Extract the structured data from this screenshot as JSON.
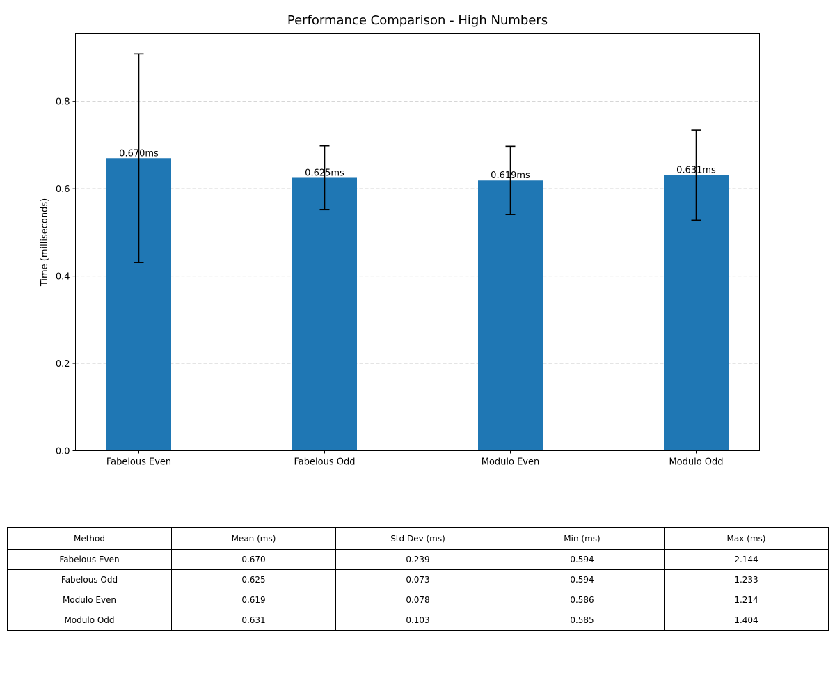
{
  "chart_data": {
    "type": "bar",
    "title": "Performance Comparison - High Numbers",
    "xlabel": "",
    "ylabel": "Time (milliseconds)",
    "categories": [
      "Fabelous Even",
      "Fabelous Odd",
      "Modulo Even",
      "Modulo Odd"
    ],
    "values": [
      0.67,
      0.625,
      0.619,
      0.631
    ],
    "errors": [
      0.239,
      0.073,
      0.078,
      0.103
    ],
    "data_labels": [
      "0.670ms",
      "0.625ms",
      "0.619ms",
      "0.631ms"
    ],
    "ylim": [
      0,
      0.955
    ],
    "yticks": [
      0.0,
      0.2,
      0.4,
      0.6,
      0.8
    ],
    "ytick_labels": [
      "0.0",
      "0.2",
      "0.4",
      "0.6",
      "0.8"
    ],
    "grid": "y-dashed",
    "bar_color": "#1f77b4"
  },
  "table": {
    "headers": [
      "Method",
      "Mean (ms)",
      "Std Dev (ms)",
      "Min (ms)",
      "Max (ms)"
    ],
    "rows": [
      [
        "Fabelous Even",
        "0.670",
        "0.239",
        "0.594",
        "2.144"
      ],
      [
        "Fabelous Odd",
        "0.625",
        "0.073",
        "0.594",
        "1.233"
      ],
      [
        "Modulo Even",
        "0.619",
        "0.078",
        "0.586",
        "1.214"
      ],
      [
        "Modulo Odd",
        "0.631",
        "0.103",
        "0.585",
        "1.404"
      ]
    ]
  }
}
